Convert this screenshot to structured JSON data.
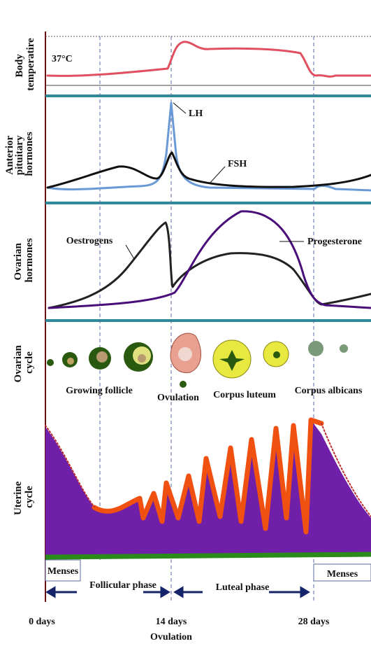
{
  "panels": [
    {
      "label": [
        "Body",
        "temperatire"
      ]
    },
    {
      "label": [
        "Anterior",
        "pituitary",
        "hormones"
      ]
    },
    {
      "label": [
        "Ovarian",
        "hormones"
      ]
    },
    {
      "label": [
        "Ovarian",
        "cycle"
      ]
    },
    {
      "label": [
        "Uterine",
        "cycle"
      ]
    }
  ],
  "temperature": "37°C",
  "hormones": {
    "lh": "LH",
    "fsh": "FSH",
    "oestrogens": "Oestrogens",
    "progesterone": "Progesterone"
  },
  "ovarian_cycle": [
    "Growing follicle",
    "Ovulation",
    "Corpus luteum",
    "Corpus albicans"
  ],
  "phases": {
    "menses_start": "Menses",
    "follicular": "Follicular phase",
    "luteal": "Luteal phase",
    "menses_end": "Menses"
  },
  "days": [
    "0 days",
    "14 days",
    "28 days"
  ],
  "day_note": "Ovulation"
}
